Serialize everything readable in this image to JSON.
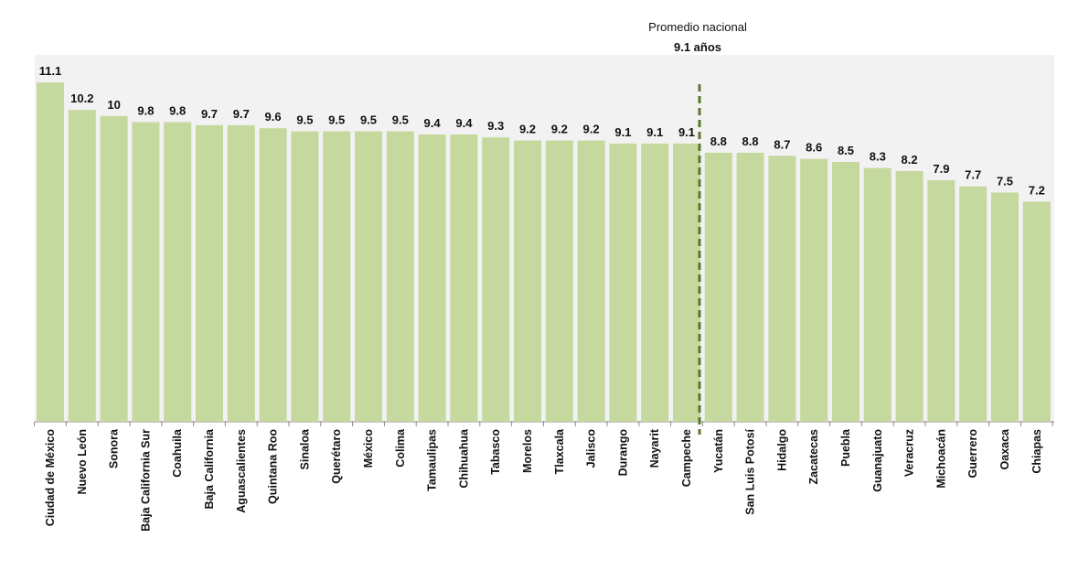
{
  "chart_data": {
    "type": "bar",
    "categories": [
      "Ciudad de México",
      "Nuevo León",
      "Sonora",
      "Baja California Sur",
      "Coahuila",
      "Baja California",
      "Aguascalientes",
      "Quintana Roo",
      "Sinaloa",
      "Querétaro",
      "México",
      "Colima",
      "Tamaulipas",
      "Chihuahua",
      "Tabasco",
      "Morelos",
      "Tlaxcala",
      "Jalisco",
      "Durango",
      "Nayarit",
      "Campeche",
      "Yucatán",
      "San Luis Potosí",
      "Hidalgo",
      "Zacatecas",
      "Puebla",
      "Guanajuato",
      "Veracruz",
      "Michoacán",
      "Guerrero",
      "Oaxaca",
      "Chiapas"
    ],
    "values": [
      11.1,
      10.2,
      10,
      9.8,
      9.8,
      9.7,
      9.7,
      9.6,
      9.5,
      9.5,
      9.5,
      9.5,
      9.4,
      9.4,
      9.3,
      9.2,
      9.2,
      9.2,
      9.1,
      9.1,
      9.1,
      8.8,
      8.8,
      8.7,
      8.6,
      8.5,
      8.3,
      8.2,
      7.9,
      7.7,
      7.5,
      7.2
    ],
    "color": "#c5d89d",
    "ylim": [
      0,
      12
    ],
    "annotation": {
      "title": "Promedio nacional",
      "value": "9.1 años"
    }
  }
}
